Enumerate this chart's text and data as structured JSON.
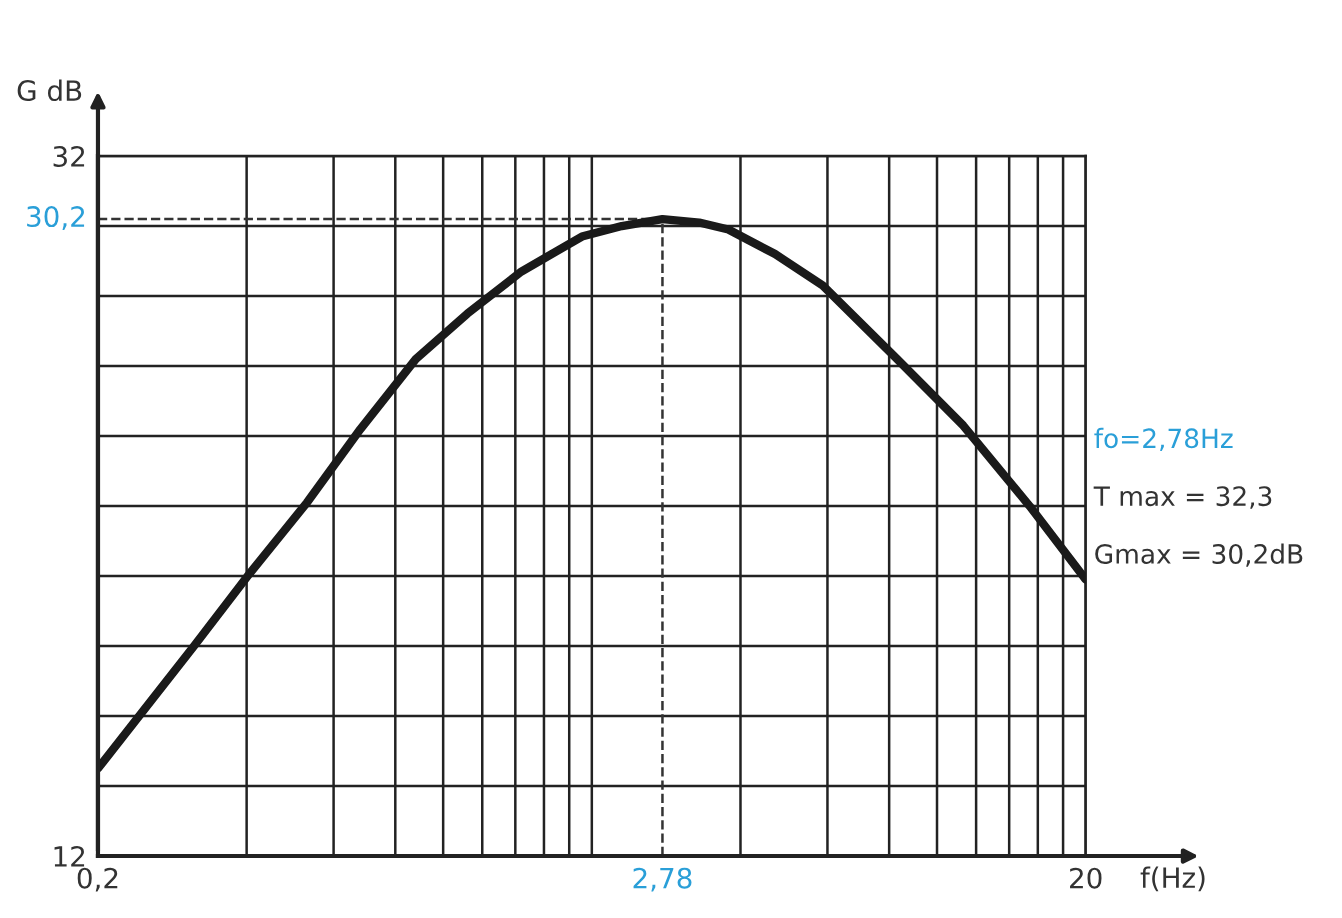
{
  "chart_data": {
    "type": "line",
    "xlabel": "f(Hz)",
    "ylabel": "G dB",
    "log": "x",
    "grid": true,
    "marker": "none",
    "line_style": "solid",
    "x": [
      0.2,
      0.313,
      0.407,
      0.53,
      0.68,
      0.88,
      1.12,
      1.44,
      1.91,
      2.3,
      2.78,
      3.3,
      3.78,
      4.7,
      5.87,
      8.3,
      11.3,
      15.4,
      20
    ],
    "series": [
      {
        "color": "#1a1a1a",
        "values": [
          14.5,
          18.0,
          20.1,
          22.1,
          24.2,
          26.2,
          27.5,
          28.7,
          29.7,
          30.0,
          30.2,
          30.1,
          29.9,
          29.2,
          28.3,
          26.2,
          24.3,
          22.0,
          19.9
        ]
      }
    ],
    "xlim": [
      0.2,
      20
    ],
    "ylim": [
      12,
      32
    ],
    "xticks": [
      {
        "value": 0.2,
        "label": "0,2"
      },
      {
        "value": 0.4,
        "label": null
      },
      {
        "value": 0.6,
        "label": null
      },
      {
        "value": 0.8,
        "label": null
      },
      {
        "value": 1.0,
        "label": null
      },
      {
        "value": 1.2,
        "label": null
      },
      {
        "value": 1.4,
        "label": null
      },
      {
        "value": 1.6,
        "label": null
      },
      {
        "value": 1.8,
        "label": null
      },
      {
        "value": 2,
        "label": null
      },
      {
        "value": 4,
        "label": null
      },
      {
        "value": 6,
        "label": null
      },
      {
        "value": 8,
        "label": null
      },
      {
        "value": 10,
        "label": null
      },
      {
        "value": 12,
        "label": null
      },
      {
        "value": 14,
        "label": null
      },
      {
        "value": 16,
        "label": null
      },
      {
        "value": 18,
        "label": null
      },
      {
        "value": 20,
        "label": "20"
      }
    ],
    "yticks": [
      12,
      {
        "value": 14,
        "label": null
      },
      {
        "value": 16,
        "label": null
      },
      {
        "value": 18,
        "label": null
      },
      {
        "value": 20,
        "label": null
      },
      {
        "value": 22,
        "label": null
      },
      {
        "value": 24,
        "label": null
      },
      {
        "value": 26,
        "label": null
      },
      {
        "value": 28,
        "label": null
      },
      {
        "value": 30,
        "label": null
      },
      32
    ],
    "ref_lines": [
      {
        "axis": "y",
        "value": 30.2,
        "label": "30,2",
        "line_style": "dashed"
      },
      {
        "axis": "x",
        "value": 2.78,
        "label": "2,78",
        "line_style": "dashed"
      }
    ],
    "annotations": [
      "fo=2,78Hz",
      "T max = 32,3",
      "Gmax = 30,2dB"
    ]
  }
}
